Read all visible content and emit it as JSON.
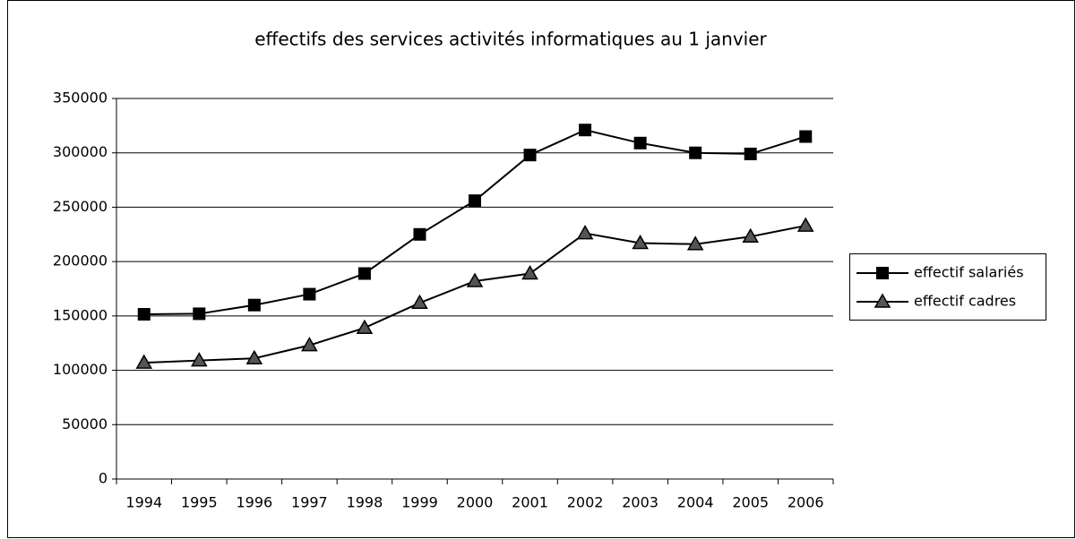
{
  "chart_data": {
    "type": "line",
    "title": "effectifs des services activités informatiques au 1 janvier",
    "categories": [
      "1994",
      "1995",
      "1996",
      "1997",
      "1998",
      "1999",
      "2000",
      "2001",
      "2002",
      "2003",
      "2004",
      "2005",
      "2006"
    ],
    "series": [
      {
        "name": "effectif salariés",
        "color": "#000000",
        "marker": "square",
        "values": [
          151500,
          152000,
          160000,
          170000,
          189000,
          225000,
          256000,
          298000,
          321000,
          309000,
          300000,
          299000,
          315000
        ]
      },
      {
        "name": "effectif cadres",
        "color": "#000000",
        "marker": "triangle",
        "values": [
          107000,
          109000,
          111000,
          123000,
          139000,
          162000,
          182000,
          189000,
          226000,
          217000,
          216000,
          223000,
          233000
        ]
      }
    ],
    "ylim": [
      0,
      350000
    ],
    "yticks": [
      0,
      50000,
      100000,
      150000,
      200000,
      250000,
      300000,
      350000
    ],
    "grid": true,
    "legend": "right"
  }
}
